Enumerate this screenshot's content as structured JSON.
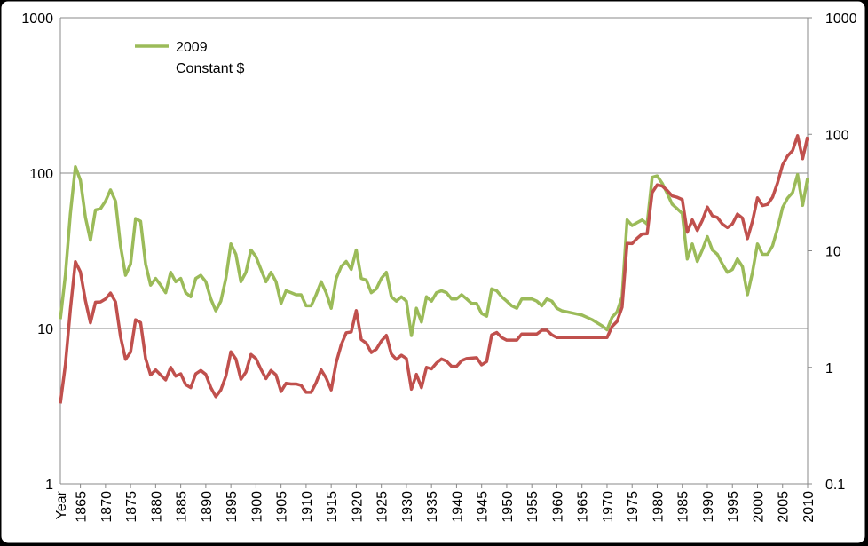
{
  "chart_data": {
    "type": "line",
    "x_label": "Year",
    "x": [
      1861,
      1862,
      1863,
      1864,
      1865,
      1866,
      1867,
      1868,
      1869,
      1870,
      1871,
      1872,
      1873,
      1874,
      1875,
      1876,
      1877,
      1878,
      1879,
      1880,
      1881,
      1882,
      1883,
      1884,
      1885,
      1886,
      1887,
      1888,
      1889,
      1890,
      1891,
      1892,
      1893,
      1894,
      1895,
      1896,
      1897,
      1898,
      1899,
      1900,
      1901,
      1902,
      1903,
      1904,
      1905,
      1906,
      1907,
      1908,
      1909,
      1910,
      1911,
      1912,
      1913,
      1914,
      1915,
      1916,
      1917,
      1918,
      1919,
      1920,
      1921,
      1922,
      1923,
      1924,
      1925,
      1926,
      1927,
      1928,
      1929,
      1930,
      1931,
      1932,
      1933,
      1934,
      1935,
      1936,
      1937,
      1938,
      1939,
      1940,
      1941,
      1942,
      1943,
      1944,
      1945,
      1946,
      1947,
      1948,
      1949,
      1950,
      1951,
      1952,
      1953,
      1954,
      1955,
      1956,
      1957,
      1958,
      1959,
      1960,
      1961,
      1962,
      1963,
      1964,
      1965,
      1966,
      1967,
      1968,
      1969,
      1970,
      1971,
      1972,
      1973,
      1974,
      1975,
      1976,
      1977,
      1978,
      1979,
      1980,
      1981,
      1982,
      1983,
      1984,
      1985,
      1986,
      1987,
      1988,
      1989,
      1990,
      1991,
      1992,
      1993,
      1994,
      1995,
      1996,
      1997,
      1998,
      1999,
      2000,
      2001,
      2002,
      2003,
      2004,
      2005,
      2006,
      2007,
      2008,
      2009,
      2010
    ],
    "xlim": [
      1861,
      2010
    ],
    "xticks": [
      1865,
      1870,
      1875,
      1880,
      1885,
      1890,
      1895,
      1900,
      1905,
      1910,
      1915,
      1920,
      1925,
      1930,
      1935,
      1940,
      1945,
      1950,
      1955,
      1960,
      1965,
      1970,
      1975,
      1980,
      1985,
      1990,
      1995,
      2000,
      2005,
      2010
    ],
    "log_scale": true,
    "ylim": [
      1,
      1000
    ],
    "yticks": [
      1,
      10,
      100,
      1000
    ],
    "y2lim": [
      0.1,
      1000
    ],
    "y2ticks": [
      0.1,
      1,
      10,
      100,
      1000
    ],
    "grid": true,
    "series": [
      {
        "name": "2009 Constant $",
        "color": "#9bbb59",
        "values": [
          11.5,
          22,
          55,
          110,
          90,
          52,
          37,
          58,
          59,
          66,
          78,
          66,
          34,
          22,
          26,
          51,
          49,
          26,
          19,
          21,
          19,
          17,
          23,
          20,
          21,
          17,
          16,
          21,
          22,
          20,
          15.5,
          13,
          15,
          21,
          35,
          30,
          20,
          23,
          32,
          29,
          24,
          20,
          23,
          20,
          14.5,
          17.5,
          17,
          16.5,
          16.5,
          14,
          14,
          16.5,
          20,
          17,
          13.5,
          21,
          25,
          27,
          24,
          32,
          21,
          20.5,
          17,
          18,
          21,
          23,
          16,
          15,
          16,
          15,
          9,
          13.5,
          11,
          16,
          15,
          17,
          17.5,
          17,
          15.5,
          15.5,
          16.5,
          15.5,
          14.5,
          14.5,
          12.5,
          12,
          18,
          17.5,
          16,
          15,
          14,
          13.5,
          15.5,
          15.5,
          15.5,
          15,
          14,
          15.5,
          15,
          13.5,
          13,
          12.8,
          12.6,
          12.4,
          12.2,
          11.8,
          11.4,
          10.9,
          10.4,
          9.8,
          11.8,
          12.8,
          16,
          50,
          46,
          48,
          50,
          47,
          94,
          96,
          86,
          74,
          63,
          59,
          55,
          28,
          35,
          27,
          32,
          39,
          32,
          30,
          26,
          23,
          24,
          28,
          25,
          16.5,
          23,
          35,
          30,
          30,
          34,
          44,
          60,
          69,
          75,
          98,
          62,
          93
        ]
      },
      {
        "color": "#c0504d",
        "axis": "y2",
        "values": [
          0.49,
          1.05,
          3.15,
          8.06,
          6.59,
          3.74,
          2.41,
          3.62,
          3.64,
          3.86,
          4.34,
          3.64,
          1.83,
          1.17,
          1.35,
          2.56,
          2.42,
          1.19,
          0.86,
          0.95,
          0.86,
          0.78,
          1.0,
          0.84,
          0.88,
          0.71,
          0.67,
          0.88,
          0.94,
          0.87,
          0.67,
          0.56,
          0.64,
          0.84,
          1.36,
          1.18,
          0.79,
          0.91,
          1.29,
          1.19,
          0.96,
          0.8,
          0.94,
          0.86,
          0.62,
          0.73,
          0.72,
          0.72,
          0.7,
          0.61,
          0.61,
          0.74,
          0.95,
          0.81,
          0.64,
          1.1,
          1.56,
          1.98,
          2.01,
          3.07,
          1.73,
          1.61,
          1.34,
          1.43,
          1.68,
          1.88,
          1.3,
          1.17,
          1.27,
          1.19,
          0.65,
          0.87,
          0.67,
          1.0,
          0.97,
          1.09,
          1.18,
          1.13,
          1.02,
          1.02,
          1.14,
          1.19,
          1.2,
          1.21,
          1.05,
          1.12,
          1.9,
          1.99,
          1.8,
          1.71,
          1.71,
          1.71,
          1.93,
          1.93,
          1.93,
          1.93,
          2.08,
          2.08,
          1.9,
          1.8,
          1.8,
          1.8,
          1.8,
          1.8,
          1.8,
          1.8,
          1.8,
          1.8,
          1.8,
          1.8,
          2.24,
          2.48,
          3.29,
          11.58,
          11.53,
          12.8,
          13.92,
          14.02,
          31.61,
          36.83,
          35.93,
          32.97,
          29.55,
          28.78,
          27.56,
          14.43,
          18.44,
          14.92,
          18.23,
          23.73,
          20.0,
          19.32,
          16.97,
          15.82,
          17.02,
          20.67,
          19.09,
          12.72,
          17.97,
          28.5,
          24.44,
          25.02,
          28.83,
          38.27,
          54.52,
          65.14,
          72.39,
          97.26,
          61.67,
          95
        ]
      }
    ]
  }
}
